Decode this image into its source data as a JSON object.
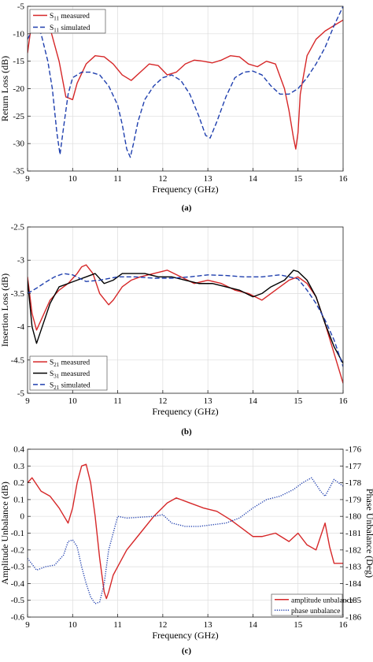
{
  "panels": [
    {
      "caption": "(a)",
      "chart_data": {
        "type": "line",
        "xlabel": "Frequency (GHz)",
        "ylabel": "Return Loss (dB)",
        "xlim": [
          9,
          16
        ],
        "ylim": [
          -35,
          -5
        ],
        "xticks": [
          9,
          10,
          11,
          12,
          13,
          14,
          15,
          16
        ],
        "yticks": [
          -35,
          -30,
          -25,
          -20,
          -15,
          -10,
          -5
        ],
        "grid": true,
        "legend": "top-left",
        "series": [
          {
            "name": "S11 measured",
            "label_main": "S",
            "label_sub": "11",
            "label_rest": " measured",
            "color": "#d62728",
            "dash": "solid",
            "x": [
              9.0,
              9.1,
              9.3,
              9.5,
              9.7,
              9.85,
              10.0,
              10.1,
              10.3,
              10.5,
              10.7,
              10.9,
              11.1,
              11.3,
              11.5,
              11.7,
              11.9,
              12.1,
              12.3,
              12.5,
              12.7,
              12.9,
              13.1,
              13.3,
              13.5,
              13.7,
              13.9,
              14.1,
              14.3,
              14.5,
              14.7,
              14.8,
              14.9,
              14.95,
              15.0,
              15.05,
              15.2,
              15.4,
              15.6,
              15.8,
              16.0
            ],
            "y": [
              -13.5,
              -7.5,
              -6.5,
              -9.0,
              -15.0,
              -21.5,
              -22.0,
              -19.0,
              -15.5,
              -14.0,
              -14.2,
              -15.5,
              -17.5,
              -18.5,
              -17.0,
              -15.5,
              -15.8,
              -17.5,
              -17.0,
              -15.5,
              -14.8,
              -15.0,
              -15.3,
              -14.8,
              -14.0,
              -14.2,
              -15.5,
              -16.0,
              -15.0,
              -15.5,
              -20.0,
              -24.0,
              -29.0,
              -31.0,
              -28.0,
              -21.0,
              -14.0,
              -11.0,
              -9.5,
              -8.5,
              -7.5
            ]
          },
          {
            "name": "S11 simulated",
            "label_main": "S",
            "label_sub": "11",
            "label_rest": " simulated",
            "color": "#1f3fae",
            "dash": "dashed",
            "x": [
              9.0,
              9.15,
              9.3,
              9.45,
              9.55,
              9.65,
              9.72,
              9.8,
              9.9,
              10.0,
              10.2,
              10.4,
              10.6,
              10.8,
              11.0,
              11.1,
              11.2,
              11.28,
              11.35,
              11.45,
              11.6,
              11.8,
              12.0,
              12.2,
              12.4,
              12.6,
              12.8,
              12.95,
              13.05,
              13.2,
              13.4,
              13.6,
              13.8,
              14.0,
              14.2,
              14.4,
              14.6,
              14.8,
              15.0,
              15.2,
              15.4,
              15.6,
              15.8,
              16.0
            ],
            "y": [
              -11.0,
              -8.5,
              -10.0,
              -15.0,
              -20.0,
              -28.0,
              -32.0,
              -27.0,
              -21.0,
              -18.0,
              -17.0,
              -17.0,
              -17.5,
              -19.5,
              -23.0,
              -26.5,
              -31.0,
              -32.5,
              -30.0,
              -26.0,
              -22.0,
              -19.5,
              -18.0,
              -17.5,
              -18.5,
              -21.0,
              -25.0,
              -28.5,
              -29.0,
              -26.0,
              -21.5,
              -18.0,
              -17.0,
              -16.8,
              -17.5,
              -19.5,
              -21.0,
              -21.0,
              -20.0,
              -18.0,
              -15.5,
              -12.5,
              -8.5,
              -5.0
            ]
          }
        ]
      }
    },
    {
      "caption": "(b)",
      "chart_data": {
        "type": "line",
        "xlabel": "Frequency (GHz)",
        "ylabel": "Insertion Loss (dB)",
        "xlim": [
          9,
          16
        ],
        "ylim": [
          -5,
          -2.5
        ],
        "xticks": [
          9,
          10,
          11,
          12,
          13,
          14,
          15,
          16
        ],
        "yticks": [
          -5,
          -4.5,
          -4,
          -3.5,
          -3,
          -2.5
        ],
        "grid": true,
        "legend": "bottom-left",
        "series": [
          {
            "name": "S21 measured",
            "label_main": "S",
            "label_sub": "21",
            "label_rest": " measured",
            "color": "#d62728",
            "dash": "solid",
            "x": [
              9.0,
              9.1,
              9.2,
              9.3,
              9.5,
              9.7,
              9.9,
              10.1,
              10.2,
              10.3,
              10.45,
              10.6,
              10.8,
              10.9,
              11.1,
              11.3,
              11.5,
              11.8,
              12.1,
              12.4,
              12.7,
              13.0,
              13.3,
              13.6,
              13.9,
              14.2,
              14.5,
              14.8,
              15.0,
              15.2,
              15.4,
              15.6,
              15.8,
              16.0
            ],
            "y": [
              -3.25,
              -3.8,
              -4.05,
              -3.9,
              -3.6,
              -3.45,
              -3.35,
              -3.2,
              -3.1,
              -3.07,
              -3.2,
              -3.5,
              -3.67,
              -3.6,
              -3.4,
              -3.3,
              -3.25,
              -3.2,
              -3.15,
              -3.25,
              -3.35,
              -3.3,
              -3.35,
              -3.45,
              -3.5,
              -3.6,
              -3.45,
              -3.3,
              -3.25,
              -3.35,
              -3.55,
              -3.95,
              -4.4,
              -4.85
            ]
          },
          {
            "name": "S31 measured",
            "label_main": "S",
            "label_sub": "31",
            "label_rest": " measured",
            "color": "#000000",
            "dash": "solid",
            "x": [
              9.0,
              9.1,
              9.2,
              9.3,
              9.5,
              9.7,
              9.9,
              10.1,
              10.3,
              10.5,
              10.7,
              10.9,
              11.1,
              11.3,
              11.6,
              11.9,
              12.2,
              12.5,
              12.8,
              13.1,
              13.4,
              13.7,
              14.0,
              14.2,
              14.4,
              14.7,
              14.9,
              15.0,
              15.2,
              15.4,
              15.6,
              15.8,
              16.0
            ],
            "y": [
              -3.3,
              -4.0,
              -4.25,
              -4.05,
              -3.65,
              -3.4,
              -3.35,
              -3.3,
              -3.25,
              -3.2,
              -3.35,
              -3.3,
              -3.2,
              -3.2,
              -3.2,
              -3.25,
              -3.25,
              -3.3,
              -3.35,
              -3.35,
              -3.4,
              -3.45,
              -3.55,
              -3.5,
              -3.4,
              -3.3,
              -3.15,
              -3.17,
              -3.3,
              -3.55,
              -3.95,
              -4.3,
              -4.55
            ]
          },
          {
            "name": "S21 simulated",
            "label_main": "S",
            "label_sub": "21",
            "label_rest": " simulated",
            "color": "#1f3fae",
            "dash": "dashed",
            "x": [
              9.0,
              9.2,
              9.4,
              9.6,
              9.8,
              10.0,
              10.3,
              10.6,
              11.0,
              11.4,
              11.8,
              12.2,
              12.6,
              13.0,
              13.4,
              13.8,
              14.2,
              14.6,
              15.0,
              15.2,
              15.4,
              15.6,
              15.8,
              16.0
            ],
            "y": [
              -3.5,
              -3.42,
              -3.33,
              -3.25,
              -3.2,
              -3.22,
              -3.32,
              -3.3,
              -3.25,
              -3.25,
              -3.27,
              -3.27,
              -3.25,
              -3.22,
              -3.23,
              -3.25,
              -3.25,
              -3.22,
              -3.28,
              -3.45,
              -3.65,
              -3.9,
              -4.2,
              -4.6
            ]
          }
        ]
      }
    },
    {
      "caption": "(c)",
      "chart_data": {
        "type": "line",
        "xlabel": "Frequency (GHz)",
        "ylabel": "Amplitude Unbalance (dB)",
        "ylabel_right": "Phase Unbalance (Deg)",
        "xlim": [
          9,
          16
        ],
        "ylim": [
          -0.6,
          0.4
        ],
        "ylim_right": [
          -186,
          -176
        ],
        "xticks": [
          9,
          10,
          11,
          12,
          13,
          14,
          15,
          16
        ],
        "yticks": [
          -0.6,
          -0.5,
          -0.4,
          -0.3,
          -0.2,
          -0.1,
          0,
          0.1,
          0.2,
          0.3,
          0.4
        ],
        "yticks_right": [
          -186,
          -185,
          -184,
          -183,
          -182,
          -181,
          -180,
          -179,
          -178,
          -177,
          -176
        ],
        "grid": true,
        "legend": "bottom-right",
        "series": [
          {
            "name": "amplitude unbalance",
            "color": "#d62728",
            "dash": "solid",
            "axis": "left",
            "x": [
              9.0,
              9.1,
              9.3,
              9.5,
              9.7,
              9.9,
              10.0,
              10.1,
              10.2,
              10.3,
              10.4,
              10.5,
              10.6,
              10.7,
              10.75,
              10.8,
              10.9,
              11.0,
              11.2,
              11.5,
              11.8,
              12.1,
              12.3,
              12.6,
              12.9,
              13.2,
              13.5,
              13.8,
              14.0,
              14.2,
              14.5,
              14.8,
              15.0,
              15.2,
              15.4,
              15.6,
              15.7,
              15.8,
              16.0
            ],
            "y": [
              0.2,
              0.23,
              0.15,
              0.12,
              0.05,
              -0.04,
              0.05,
              0.2,
              0.3,
              0.31,
              0.2,
              0.0,
              -0.25,
              -0.45,
              -0.49,
              -0.45,
              -0.35,
              -0.3,
              -0.2,
              -0.1,
              0.0,
              0.08,
              0.11,
              0.08,
              0.05,
              0.03,
              -0.02,
              -0.08,
              -0.12,
              -0.12,
              -0.1,
              -0.15,
              -0.1,
              -0.17,
              -0.2,
              -0.04,
              -0.18,
              -0.28,
              -0.28
            ]
          },
          {
            "name": "phase unbalance",
            "color": "#1f3fae",
            "dash": "dotted",
            "axis": "right",
            "x": [
              9.0,
              9.2,
              9.4,
              9.6,
              9.8,
              9.9,
              10.0,
              10.1,
              10.2,
              10.3,
              10.4,
              10.5,
              10.6,
              10.7,
              10.8,
              10.9,
              11.0,
              11.2,
              11.5,
              11.8,
              12.0,
              12.2,
              12.5,
              12.8,
              13.1,
              13.4,
              13.7,
              14.0,
              14.3,
              14.6,
              14.9,
              15.1,
              15.3,
              15.5,
              15.6,
              15.7,
              15.8,
              15.9,
              16.0
            ],
            "y": [
              -182.5,
              -183.2,
              -183.0,
              -182.9,
              -182.3,
              -181.5,
              -181.4,
              -181.8,
              -183.0,
              -184.0,
              -184.8,
              -185.2,
              -185.1,
              -184.0,
              -182.0,
              -181.0,
              -180.0,
              -180.1,
              -180.05,
              -180.0,
              -179.9,
              -180.4,
              -180.6,
              -180.6,
              -180.5,
              -180.4,
              -180.1,
              -179.5,
              -179.0,
              -178.8,
              -178.4,
              -178.0,
              -177.7,
              -178.5,
              -178.8,
              -178.3,
              -177.8,
              -178.0,
              -178.2
            ]
          }
        ]
      }
    }
  ]
}
